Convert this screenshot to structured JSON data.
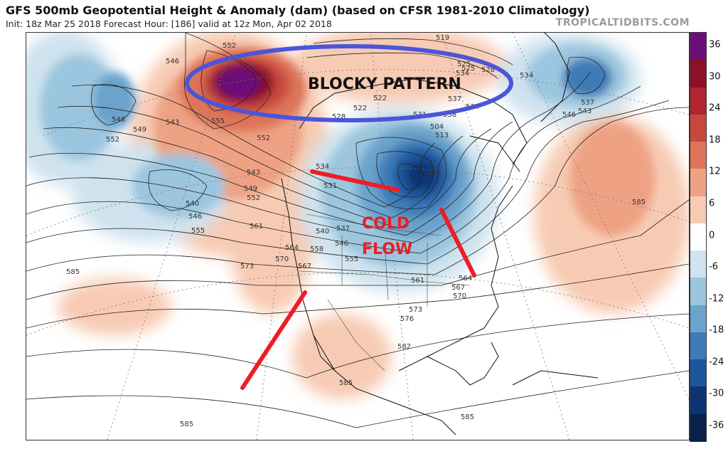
{
  "header": {
    "title": "GFS 500mb Geopotential Height & Anomaly (dam) (based on CFSR 1981-2010 Climatology)",
    "subtitle": "Init: 18z Mar 25 2018   Forecast Hour: [186]   valid at 12z Mon, Apr 02 2018",
    "brand": "TROPICALTIDBITS.COM"
  },
  "annotations": {
    "blocky": "BLOCKY PATTERN",
    "cold_line1": "COLD",
    "cold_line2": "FLOW",
    "colors": {
      "ellipse": "#4a55d8",
      "arrows": "#ee1c24"
    }
  },
  "colorbar": {
    "labels": [
      "36",
      "30",
      "24",
      "18",
      "12",
      "6",
      "0",
      "-6",
      "-12",
      "-18",
      "-24",
      "-30",
      "-36"
    ],
    "colors": [
      "#6a0f7a",
      "#8e0f2a",
      "#b22430",
      "#c9483d",
      "#dd7459",
      "#eea283",
      "#f7cbb3",
      "#ffffff",
      "#cfe3ee",
      "#9cc6df",
      "#6ba3cc",
      "#3d7cb7",
      "#1d569c",
      "#0d3574",
      "#07204c"
    ]
  },
  "contour_labels": [
    "519",
    "525",
    "528",
    "531",
    "534",
    "537",
    "540",
    "543",
    "546",
    "549",
    "552",
    "555",
    "558",
    "561",
    "564",
    "567",
    "570",
    "573",
    "576",
    "582",
    "585",
    "498",
    "504",
    "513",
    "522",
    "546",
    "549",
    "552",
    "555",
    "540",
    "546",
    "555",
    "543",
    "549",
    "552",
    "561",
    "564",
    "567",
    "570",
    "573",
    "558",
    "546",
    "555",
    "552",
    "561",
    "564",
    "567",
    "570",
    "576",
    "573",
    "582",
    "585",
    "585",
    "585",
    "585",
    "585",
    "534",
    "531",
    "537",
    "540",
    "537",
    "522",
    "531",
    "538",
    "537",
    "534",
    "546",
    "543",
    "537",
    "534",
    "546",
    "528",
    "525"
  ]
}
